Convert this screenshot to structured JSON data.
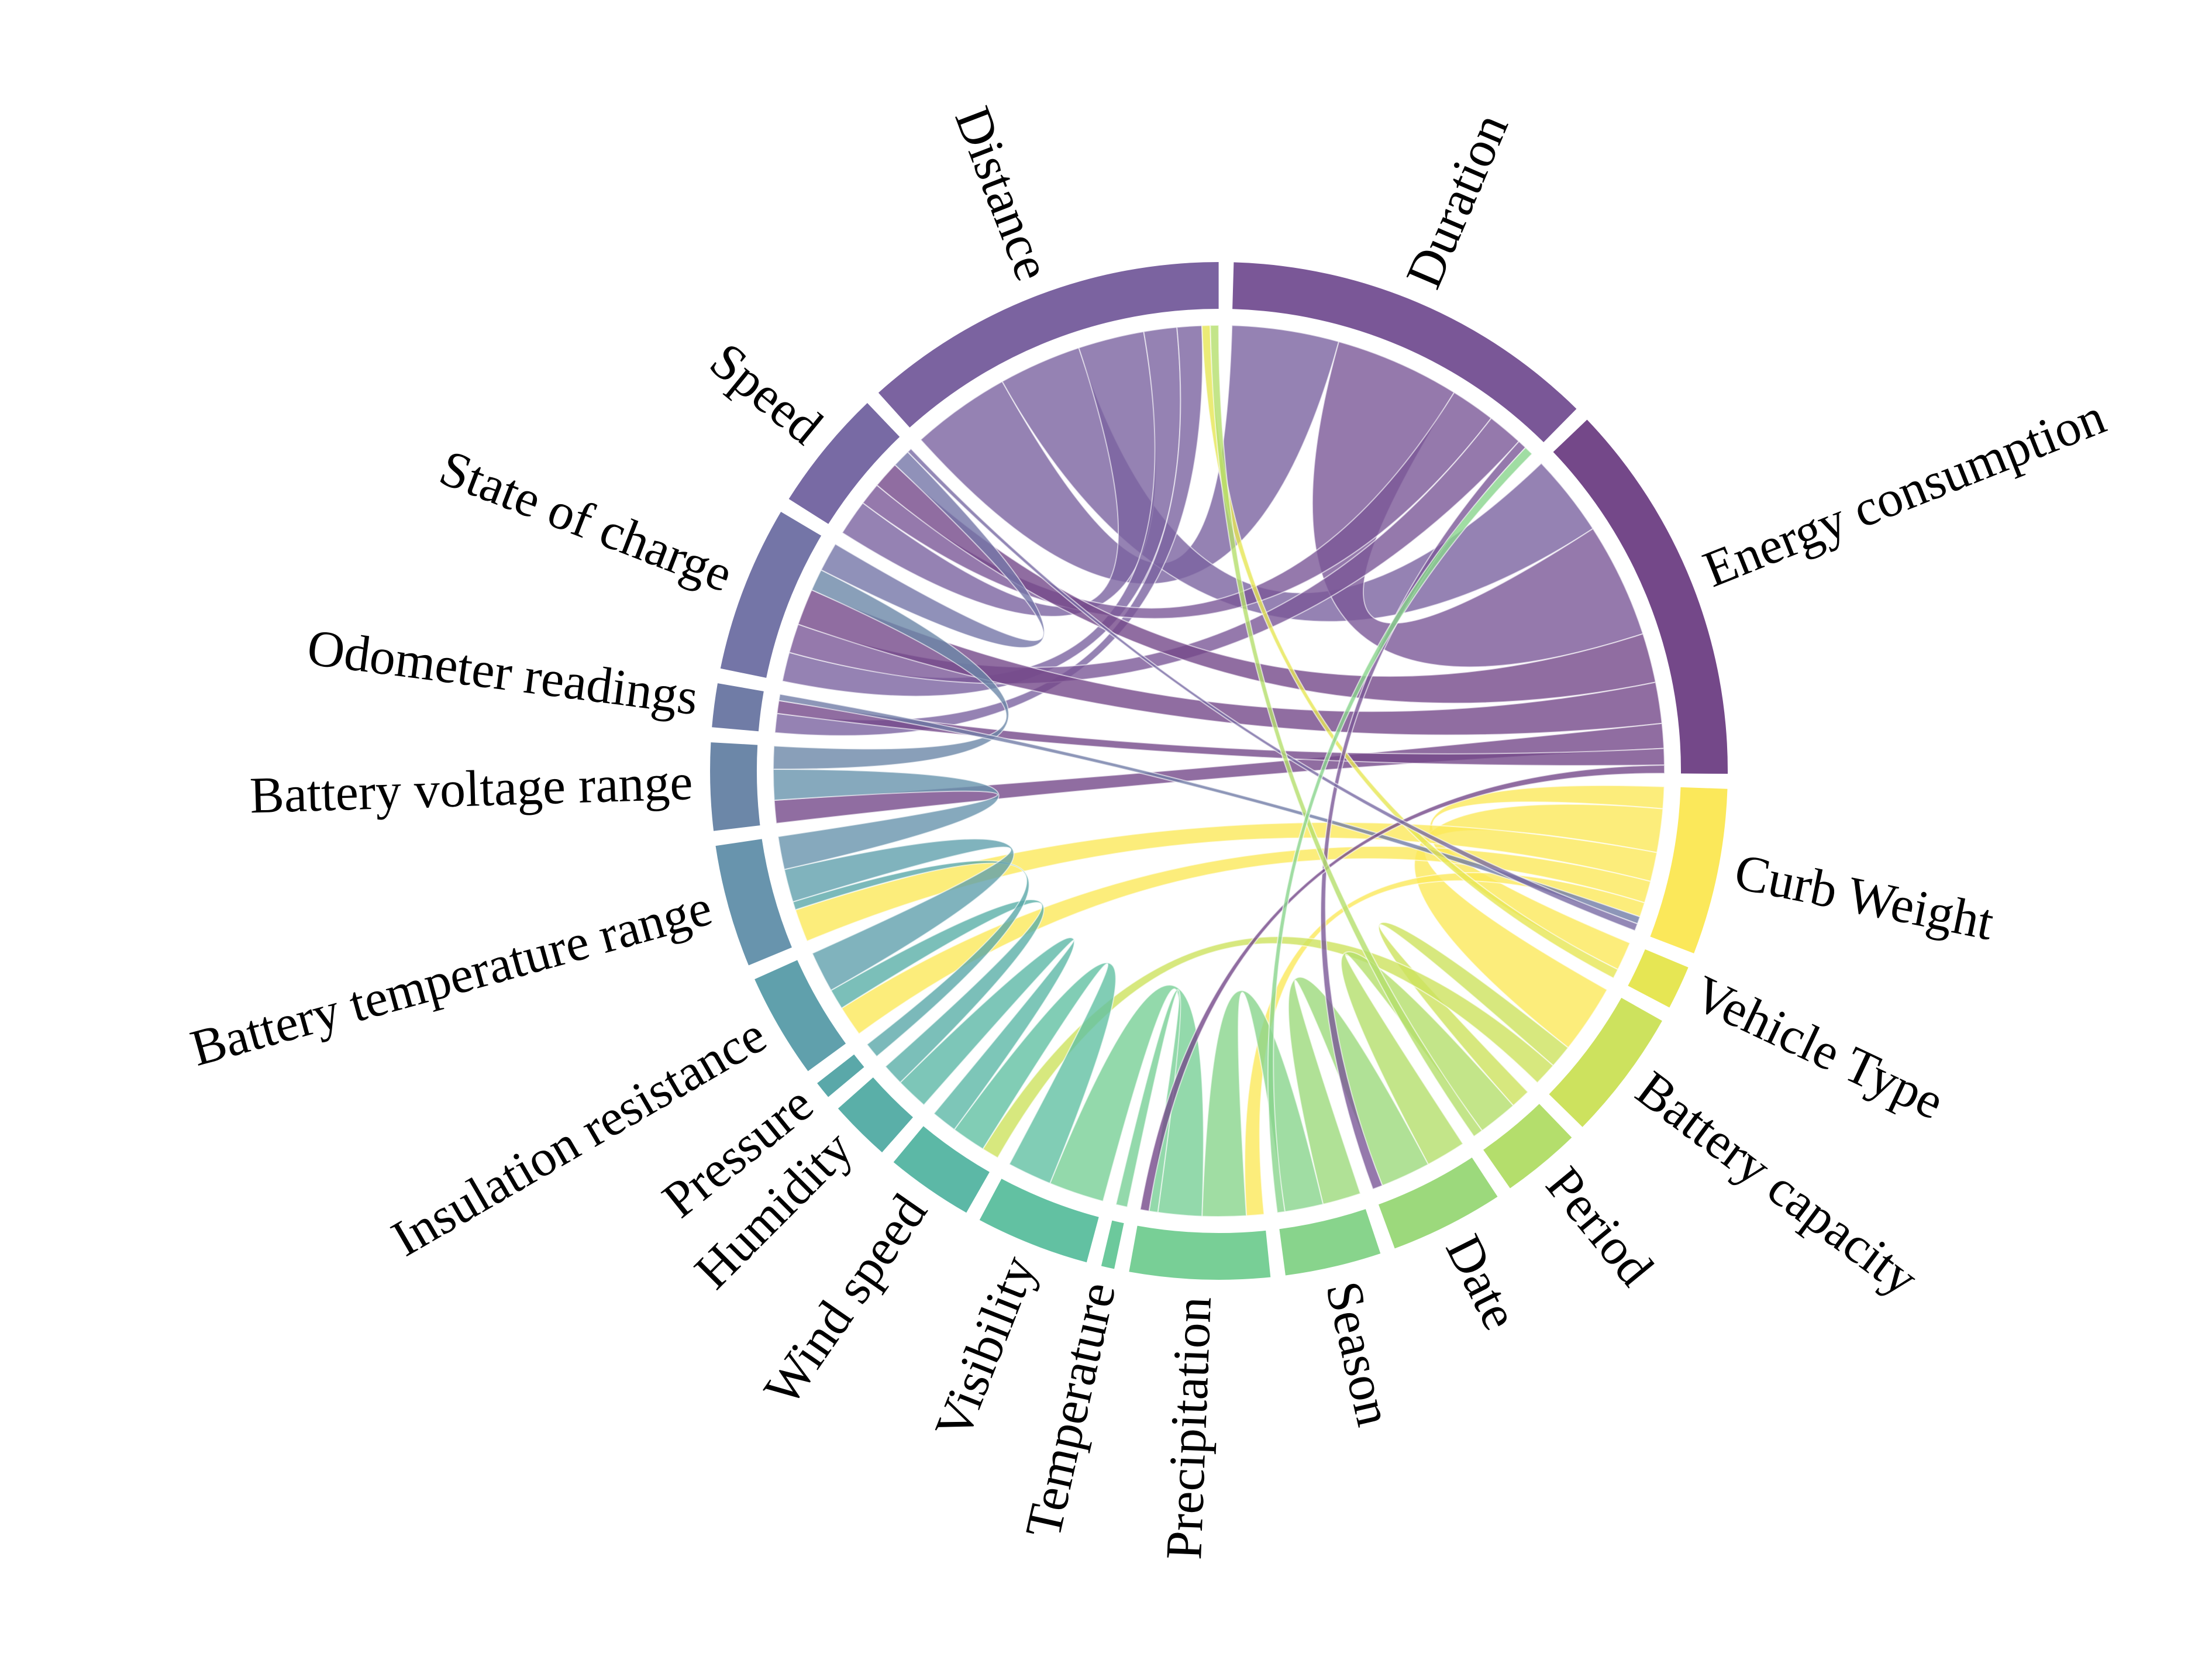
{
  "chart_data": {
    "type": "chord",
    "nodes": [
      {
        "name": "Distance",
        "color": "#7b63a0",
        "value": 42
      },
      {
        "name": "Duration",
        "color": "#7a5797",
        "value": 43
      },
      {
        "name": "Energy consumption",
        "color": "#744889",
        "value": 44
      },
      {
        "name": "Curb Weight",
        "color": "#fbe85a",
        "value": 19
      },
      {
        "name": "Vehicle Type",
        "color": "#e6e654",
        "value": 5
      },
      {
        "name": "Battery capacity",
        "color": "#cde25e",
        "value": 15
      },
      {
        "name": "Period",
        "color": "#b4de6c",
        "value": 9
      },
      {
        "name": "Date",
        "color": "#9cd97c",
        "value": 13
      },
      {
        "name": "Season",
        "color": "#88d48c",
        "value": 11
      },
      {
        "name": "Precipitation",
        "color": "#78cf96",
        "value": 16
      },
      {
        "name": "Temperature",
        "color": "#6cc99c",
        "value": 1.5
      },
      {
        "name": "Visibility",
        "color": "#62c1a2",
        "value": 13
      },
      {
        "name": "Wind speed",
        "color": "#5cb8a6",
        "value": 10
      },
      {
        "name": "Humidity",
        "color": "#5aafa8",
        "value": 7
      },
      {
        "name": "Pressure",
        "color": "#5aa8a9",
        "value": 2
      },
      {
        "name": "Insulation resistance",
        "color": "#60a0ac",
        "value": 12
      },
      {
        "name": "Battery temperature range",
        "color": "#6894ad",
        "value": 14
      },
      {
        "name": "Battery voltage range",
        "color": "#6c87a8",
        "value": 10
      },
      {
        "name": "Odometer readings",
        "color": "#707ca6",
        "value": 5
      },
      {
        "name": "State of charge",
        "color": "#7475a7",
        "value": 19
      },
      {
        "name": "Speed",
        "color": "#786aa4",
        "value": 14
      }
    ],
    "links": [
      {
        "source": "Distance",
        "target": "Duration",
        "value": 12
      },
      {
        "source": "Distance",
        "target": "Energy consumption",
        "value": 10
      },
      {
        "source": "Distance",
        "target": "Speed",
        "value": 8
      },
      {
        "source": "Distance",
        "target": "State of charge",
        "value": 4
      },
      {
        "source": "Distance",
        "target": "Odometer readings",
        "value": 3
      },
      {
        "source": "Duration",
        "target": "Energy consumption",
        "value": 14
      },
      {
        "source": "Duration",
        "target": "Speed",
        "value": 5
      },
      {
        "source": "Duration",
        "target": "State of charge",
        "value": 4
      },
      {
        "source": "Energy consumption",
        "target": "Speed",
        "value": 6
      },
      {
        "source": "Energy consumption",
        "target": "State of charge",
        "value": 5
      },
      {
        "source": "Energy consumption",
        "target": "Battery voltage range",
        "value": 3
      },
      {
        "source": "Energy consumption",
        "target": "Odometer readings",
        "value": 2
      },
      {
        "source": "Curb Weight",
        "target": "Vehicle Type",
        "value": 3
      },
      {
        "source": "Curb Weight",
        "target": "Battery capacity",
        "value": 6
      },
      {
        "source": "Curb Weight",
        "target": "Battery temperature range",
        "value": 4
      },
      {
        "source": "Curb Weight",
        "target": "Insulation resistance",
        "value": 3
      },
      {
        "source": "Curb Weight",
        "target": "Precipitation",
        "value": 2
      },
      {
        "source": "Battery capacity",
        "target": "Period",
        "value": 2
      },
      {
        "source": "Battery capacity",
        "target": "Wind speed",
        "value": 2
      },
      {
        "source": "Period",
        "target": "Date",
        "value": 4
      },
      {
        "source": "Date",
        "target": "Season",
        "value": 5
      },
      {
        "source": "Season",
        "target": "Precipitation",
        "value": 5
      },
      {
        "source": "Precipitation",
        "target": "Visibility",
        "value": 5
      },
      {
        "source": "Precipitation",
        "target": "Temperature",
        "value": 1
      },
      {
        "source": "Visibility",
        "target": "Wind speed",
        "value": 4
      },
      {
        "source": "Wind speed",
        "target": "Humidity",
        "value": 3
      },
      {
        "source": "Humidity",
        "target": "Insulation resistance",
        "value": 2
      },
      {
        "source": "Pressure",
        "target": "Battery temperature range",
        "value": 1
      },
      {
        "source": "Insulation resistance",
        "target": "Battery temperature range",
        "value": 4
      },
      {
        "source": "Battery temperature range",
        "target": "Battery voltage range",
        "value": 4
      },
      {
        "source": "Battery voltage range",
        "target": "State of charge",
        "value": 3
      },
      {
        "source": "State of charge",
        "target": "Speed",
        "value": 4
      },
      {
        "source": "Odometer readings",
        "target": "Curb Weight",
        "value": 1
      },
      {
        "source": "Vehicle Type",
        "target": "Distance",
        "value": 1
      },
      {
        "source": "Duration",
        "target": "Date",
        "value": 1
      },
      {
        "source": "Energy consumption",
        "target": "Precipitation",
        "value": 1
      },
      {
        "source": "Speed",
        "target": "Curb Weight",
        "value": 1
      },
      {
        "source": "Period",
        "target": "Distance",
        "value": 1
      },
      {
        "source": "Season",
        "target": "Duration",
        "value": 1
      }
    ]
  }
}
